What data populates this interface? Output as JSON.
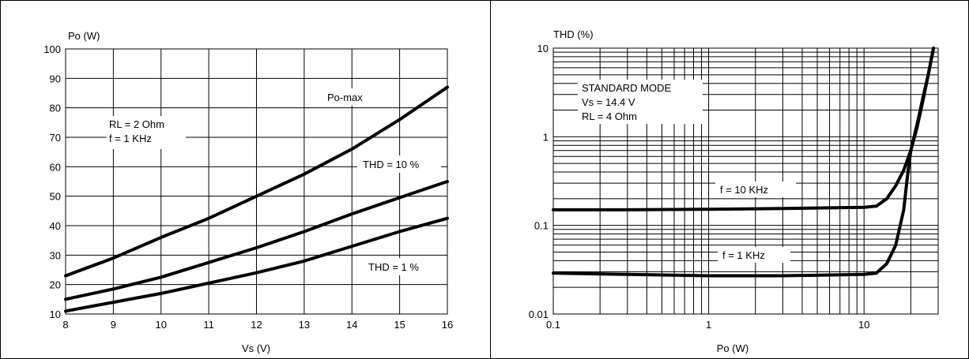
{
  "chart_data": [
    {
      "type": "line",
      "title": "",
      "xlabel": "Vs (V)",
      "ylabel": "Po (W)",
      "xlim": [
        8,
        16
      ],
      "ylim": [
        10,
        100
      ],
      "x_scale": "linear",
      "y_scale": "linear",
      "grid": true,
      "x_ticks": [
        8,
        9,
        10,
        11,
        12,
        13,
        14,
        15,
        16
      ],
      "y_ticks": [
        10,
        20,
        30,
        40,
        50,
        60,
        70,
        80,
        90,
        100
      ],
      "annotations": [
        {
          "lines": [
            "RL = 2 Ohm",
            "f = 1 KHz"
          ]
        }
      ],
      "series": [
        {
          "name": "Po-max",
          "x": [
            8,
            9,
            10,
            11,
            12,
            13,
            14,
            15,
            16
          ],
          "y": [
            23,
            29,
            36,
            42.5,
            50,
            57.5,
            66,
            76,
            87
          ]
        },
        {
          "name": "THD = 10 %",
          "x": [
            8,
            9,
            10,
            11,
            12,
            13,
            14,
            15,
            16
          ],
          "y": [
            15,
            18.5,
            22.5,
            27.5,
            32.5,
            38,
            44,
            49.5,
            55
          ]
        },
        {
          "name": "THD = 1 %",
          "x": [
            8,
            9,
            10,
            11,
            12,
            13,
            14,
            15,
            16
          ],
          "y": [
            11,
            14,
            17,
            20.5,
            24,
            28,
            33,
            38,
            42.5
          ]
        }
      ]
    },
    {
      "type": "line",
      "title": "",
      "xlabel": "Po (W)",
      "ylabel": "THD (%)",
      "xlim": [
        0.1,
        30
      ],
      "ylim": [
        0.01,
        10
      ],
      "x_scale": "log",
      "y_scale": "log",
      "grid": true,
      "x_ticks": [
        0.1,
        1,
        10
      ],
      "x_tick_labels": [
        "0.1",
        "1",
        "10"
      ],
      "y_ticks": [
        0.01,
        0.1,
        1,
        10
      ],
      "y_tick_labels": [
        "0.01",
        "0.1",
        "1",
        "10"
      ],
      "annotations": [
        {
          "lines": [
            "STANDARD MODE",
            "Vs = 14.4 V",
            "RL = 4 Ohm"
          ]
        }
      ],
      "series": [
        {
          "name": "f = 10 KHz",
          "x": [
            0.1,
            0.3,
            1,
            3,
            10,
            12,
            14,
            16,
            18,
            20,
            22,
            24,
            26,
            28
          ],
          "y": [
            0.15,
            0.15,
            0.152,
            0.155,
            0.16,
            0.165,
            0.2,
            0.28,
            0.42,
            0.7,
            1.3,
            2.6,
            5.2,
            10
          ]
        },
        {
          "name": "f = 1 KHz",
          "x": [
            0.1,
            0.3,
            1,
            3,
            10,
            12,
            14,
            16,
            18,
            19,
            20,
            22,
            24,
            26,
            28
          ],
          "y": [
            0.029,
            0.028,
            0.027,
            0.027,
            0.028,
            0.029,
            0.037,
            0.06,
            0.15,
            0.35,
            0.7,
            1.4,
            2.8,
            5.2,
            10
          ]
        }
      ]
    }
  ]
}
